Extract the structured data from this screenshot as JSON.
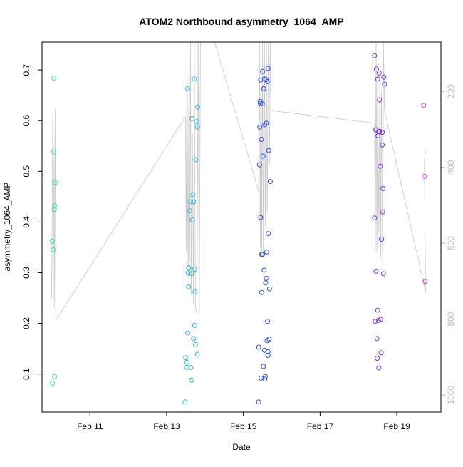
{
  "chart_data": {
    "type": "scatter",
    "title": "ATOM2 Northbound asymmetry_1064_AMP",
    "xlabel": "Date",
    "ylabel": "asymmetry_1064_AMP",
    "x_tick_labels": [
      "Feb 11",
      "Feb 13",
      "Feb 15",
      "Feb 17",
      "Feb 19"
    ],
    "x_ticks_days": [
      11,
      13,
      15,
      17,
      19
    ],
    "y_ticks": [
      0.1,
      0.2,
      0.3,
      0.4,
      0.5,
      0.6,
      0.7
    ],
    "y_tick_labels": [
      "0.1",
      "0.2",
      "0.3",
      "0.4",
      "0.5",
      "0.6",
      "0.7"
    ],
    "xlim_days": [
      9.75,
      20.15
    ],
    "ylim": [
      0.025,
      0.755
    ],
    "secondary_axis": {
      "ticks": [
        200,
        400,
        600,
        800,
        1000
      ],
      "tick_labels": [
        "200",
        "400",
        "600",
        "800",
        "1000"
      ],
      "lim_top": 70,
      "lim_bottom": 1045,
      "color": "#bdbdbd"
    },
    "grid": false,
    "line_color": "#c8c8c8",
    "point_groups": [
      {
        "day": 10.05,
        "color": "#2ee8a8",
        "points": [
          [
            10.02,
            0.362
          ],
          [
            10.04,
            0.345
          ],
          [
            10.05,
            0.538
          ],
          [
            10.06,
            0.684
          ],
          [
            10.07,
            0.425
          ],
          [
            10.08,
            0.432
          ],
          [
            10.1,
            0.478
          ],
          [
            10.02,
            0.082
          ],
          [
            10.08,
            0.095
          ]
        ]
      },
      {
        "day": 13.65,
        "color": "#2ab8e8",
        "points": [
          [
            13.48,
            0.045
          ],
          [
            13.5,
            0.132
          ],
          [
            13.52,
            0.113
          ],
          [
            13.53,
            0.123
          ],
          [
            13.55,
            0.181
          ],
          [
            13.56,
            0.3
          ],
          [
            13.57,
            0.31
          ],
          [
            13.55,
            0.663
          ],
          [
            13.57,
            0.272
          ],
          [
            13.6,
            0.422
          ],
          [
            13.62,
            0.44
          ],
          [
            13.63,
            0.113
          ],
          [
            13.65,
            0.088
          ],
          [
            13.65,
            0.298
          ],
          [
            13.66,
            0.604
          ],
          [
            13.67,
            0.404
          ],
          [
            13.68,
            0.454
          ],
          [
            13.7,
            0.44
          ],
          [
            13.7,
            0.17
          ],
          [
            13.72,
            0.682
          ],
          [
            13.73,
            0.196
          ],
          [
            13.73,
            0.307
          ],
          [
            13.74,
            0.262
          ],
          [
            13.75,
            0.158
          ],
          [
            13.76,
            0.523
          ],
          [
            13.78,
            0.598
          ],
          [
            13.8,
            0.587
          ],
          [
            13.81,
            0.627
          ],
          [
            13.8,
            0.139
          ]
        ]
      },
      {
        "day": 15.5,
        "color": "#2a4ee8",
        "points": [
          [
            15.4,
            0.045
          ],
          [
            15.4,
            0.153
          ],
          [
            15.42,
            0.513
          ],
          [
            15.43,
            0.587
          ],
          [
            15.44,
            0.634
          ],
          [
            15.44,
            0.638
          ],
          [
            15.45,
            0.68
          ],
          [
            15.45,
            0.409
          ],
          [
            15.46,
            0.092
          ],
          [
            15.47,
            0.563
          ],
          [
            15.48,
            0.336
          ],
          [
            15.48,
            0.261
          ],
          [
            15.49,
            0.633
          ],
          [
            15.5,
            0.697
          ],
          [
            15.5,
            0.336
          ],
          [
            15.51,
            0.53
          ],
          [
            15.52,
            0.115
          ],
          [
            15.53,
            0.663
          ],
          [
            15.54,
            0.305
          ],
          [
            15.55,
            0.682
          ],
          [
            15.55,
            0.147
          ],
          [
            15.56,
            0.09
          ],
          [
            15.56,
            0.592
          ],
          [
            15.57,
            0.095
          ],
          [
            15.58,
            0.28
          ],
          [
            15.59,
            0.681
          ],
          [
            15.6,
            0.289
          ],
          [
            15.6,
            0.595
          ],
          [
            15.61,
            0.341
          ],
          [
            15.62,
            0.677
          ],
          [
            15.62,
            0.166
          ],
          [
            15.63,
            0.204
          ],
          [
            15.64,
            0.703
          ],
          [
            15.64,
            0.137
          ],
          [
            15.65,
            0.377
          ],
          [
            15.66,
            0.541
          ],
          [
            15.67,
            0.169
          ],
          [
            15.68,
            0.268
          ],
          [
            15.7,
            0.48
          ],
          [
            15.64,
            0.144
          ]
        ]
      },
      {
        "day": 18.55,
        "color": "#7a2ee8",
        "points": [
          [
            18.42,
            0.728
          ],
          [
            18.42,
            0.408
          ],
          [
            18.44,
            0.204
          ],
          [
            18.45,
            0.582
          ],
          [
            18.46,
            0.303
          ],
          [
            18.47,
            0.702
          ],
          [
            18.48,
            0.17
          ],
          [
            18.49,
            0.131
          ],
          [
            18.5,
            0.682
          ],
          [
            18.5,
            0.226
          ],
          [
            18.51,
            0.57
          ],
          [
            18.52,
            0.206
          ],
          [
            18.53,
            0.112
          ],
          [
            18.54,
            0.694
          ],
          [
            18.55,
            0.579
          ],
          [
            18.55,
            0.641
          ],
          [
            18.57,
            0.51
          ],
          [
            18.58,
            0.208
          ],
          [
            18.59,
            0.142
          ],
          [
            18.6,
            0.366
          ],
          [
            18.62,
            0.577
          ],
          [
            18.62,
            0.552
          ],
          [
            18.63,
            0.42
          ],
          [
            18.64,
            0.466
          ],
          [
            18.65,
            0.298
          ],
          [
            18.66,
            0.686
          ],
          [
            18.68,
            0.672
          ],
          [
            18.53,
            0.578
          ]
        ]
      },
      {
        "day": 19.72,
        "color": "#d82ee8",
        "points": [
          [
            19.7,
            0.63
          ],
          [
            19.72,
            0.49
          ],
          [
            19.74,
            0.283
          ]
        ]
      }
    ],
    "lines": [
      [
        [
          10.0,
          0.248
        ],
        [
          10.03,
          0.614
        ],
        [
          10.05,
          0.505
        ],
        [
          10.07,
          0.23
        ],
        [
          10.09,
          0.622
        ],
        [
          10.11,
          0.206
        ],
        [
          13.49,
          0.608
        ]
      ],
      [
        [
          13.49,
          0.608
        ],
        [
          13.51,
          0.343
        ],
        [
          13.53,
          0.755
        ],
        [
          13.56,
          0.288
        ],
        [
          13.58,
          0.64
        ],
        [
          13.6,
          0.32
        ],
        [
          13.62,
          0.755
        ],
        [
          13.64,
          0.256
        ],
        [
          13.67,
          0.575
        ],
        [
          13.7,
          0.237
        ],
        [
          13.72,
          0.755
        ],
        [
          13.75,
          0.23
        ],
        [
          13.79,
          0.218
        ],
        [
          13.82,
          0.755
        ],
        [
          13.85,
          0.215
        ],
        [
          13.88,
          0.755
        ]
      ],
      [
        [
          14.25,
          0.755
        ],
        [
          15.4,
          0.46
        ]
      ],
      [
        [
          15.4,
          0.46
        ],
        [
          15.42,
          0.755
        ],
        [
          15.44,
          0.35
        ],
        [
          15.46,
          0.755
        ],
        [
          15.48,
          0.33
        ],
        [
          15.5,
          0.755
        ],
        [
          15.52,
          0.34
        ],
        [
          15.55,
          0.755
        ],
        [
          15.57,
          0.39
        ],
        [
          15.6,
          0.755
        ],
        [
          15.62,
          0.42
        ],
        [
          15.65,
          0.755
        ],
        [
          15.68,
          0.51
        ],
        [
          15.7,
          0.755
        ],
        [
          15.72,
          0.62
        ],
        [
          18.42,
          0.595
        ]
      ],
      [
        [
          18.42,
          0.595
        ],
        [
          18.44,
          0.34
        ],
        [
          18.46,
          0.755
        ],
        [
          18.48,
          0.34
        ],
        [
          18.5,
          0.69
        ],
        [
          18.53,
          0.38
        ],
        [
          18.56,
          0.715
        ],
        [
          18.58,
          0.33
        ],
        [
          18.6,
          0.66
        ],
        [
          18.63,
          0.3
        ],
        [
          18.65,
          0.755
        ],
        [
          18.68,
          0.62
        ],
        [
          19.75,
          0.262
        ]
      ],
      [
        [
          19.75,
          0.262
        ],
        [
          19.72,
          0.52
        ],
        [
          19.75,
          0.54
        ]
      ]
    ]
  }
}
